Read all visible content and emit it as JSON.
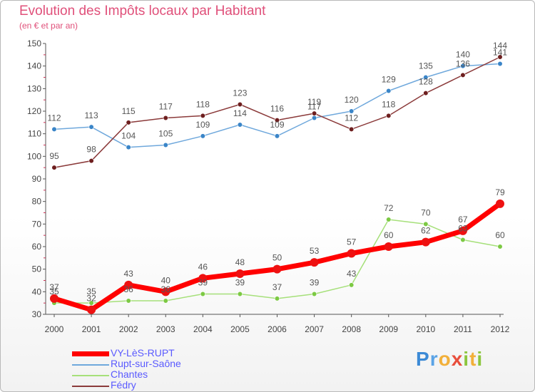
{
  "header": {
    "title": "Evolution des Impôts locaux par Habitant",
    "subtitle": "(en € et par an)"
  },
  "colors": {
    "title": "#e0507a",
    "legend_text": "#5a5aff",
    "axis": "#555555"
  },
  "logo": {
    "text": "Proxiti"
  },
  "chart_data": {
    "type": "line",
    "title": "Evolution des Impôts locaux par Habitant",
    "subtitle": "(en € et par an)",
    "categories": [
      "2000",
      "2001",
      "2002",
      "2003",
      "2004",
      "2005",
      "2006",
      "2007",
      "2008",
      "2009",
      "2010",
      "2011",
      "2012"
    ],
    "ylim": [
      30,
      150
    ],
    "yticks": [
      30,
      40,
      50,
      60,
      70,
      80,
      90,
      100,
      110,
      120,
      130,
      140,
      150
    ],
    "grid": false,
    "legend_position": "bottom-left",
    "series": [
      {
        "name": "VY-LèS-RUPT",
        "color": "#ff0000",
        "marker": "#ee1111",
        "width": 7,
        "r": 6,
        "values": [
          37,
          32,
          43,
          40,
          46,
          48,
          50,
          53,
          57,
          60,
          62,
          67,
          79
        ]
      },
      {
        "name": "Rupt-sur-Saône",
        "color": "#6fa8dc",
        "marker": "#3a85c8",
        "width": 1.5,
        "r": 3.3,
        "values": [
          112,
          113,
          104,
          105,
          109,
          114,
          109,
          117,
          120,
          129,
          135,
          140,
          141
        ]
      },
      {
        "name": "Chantes",
        "color": "#a6e07a",
        "marker": "#7cc943",
        "width": 1.5,
        "r": 3.3,
        "values": [
          35,
          35,
          36,
          36,
          39,
          39,
          37,
          39,
          43,
          72,
          70,
          63,
          60
        ]
      },
      {
        "name": "Fédry",
        "color": "#8b3a3a",
        "marker": "#6e1f1f",
        "width": 1.5,
        "r": 3.3,
        "values": [
          95,
          98,
          115,
          117,
          118,
          123,
          116,
          119,
          112,
          118,
          128,
          136,
          144
        ]
      }
    ]
  }
}
